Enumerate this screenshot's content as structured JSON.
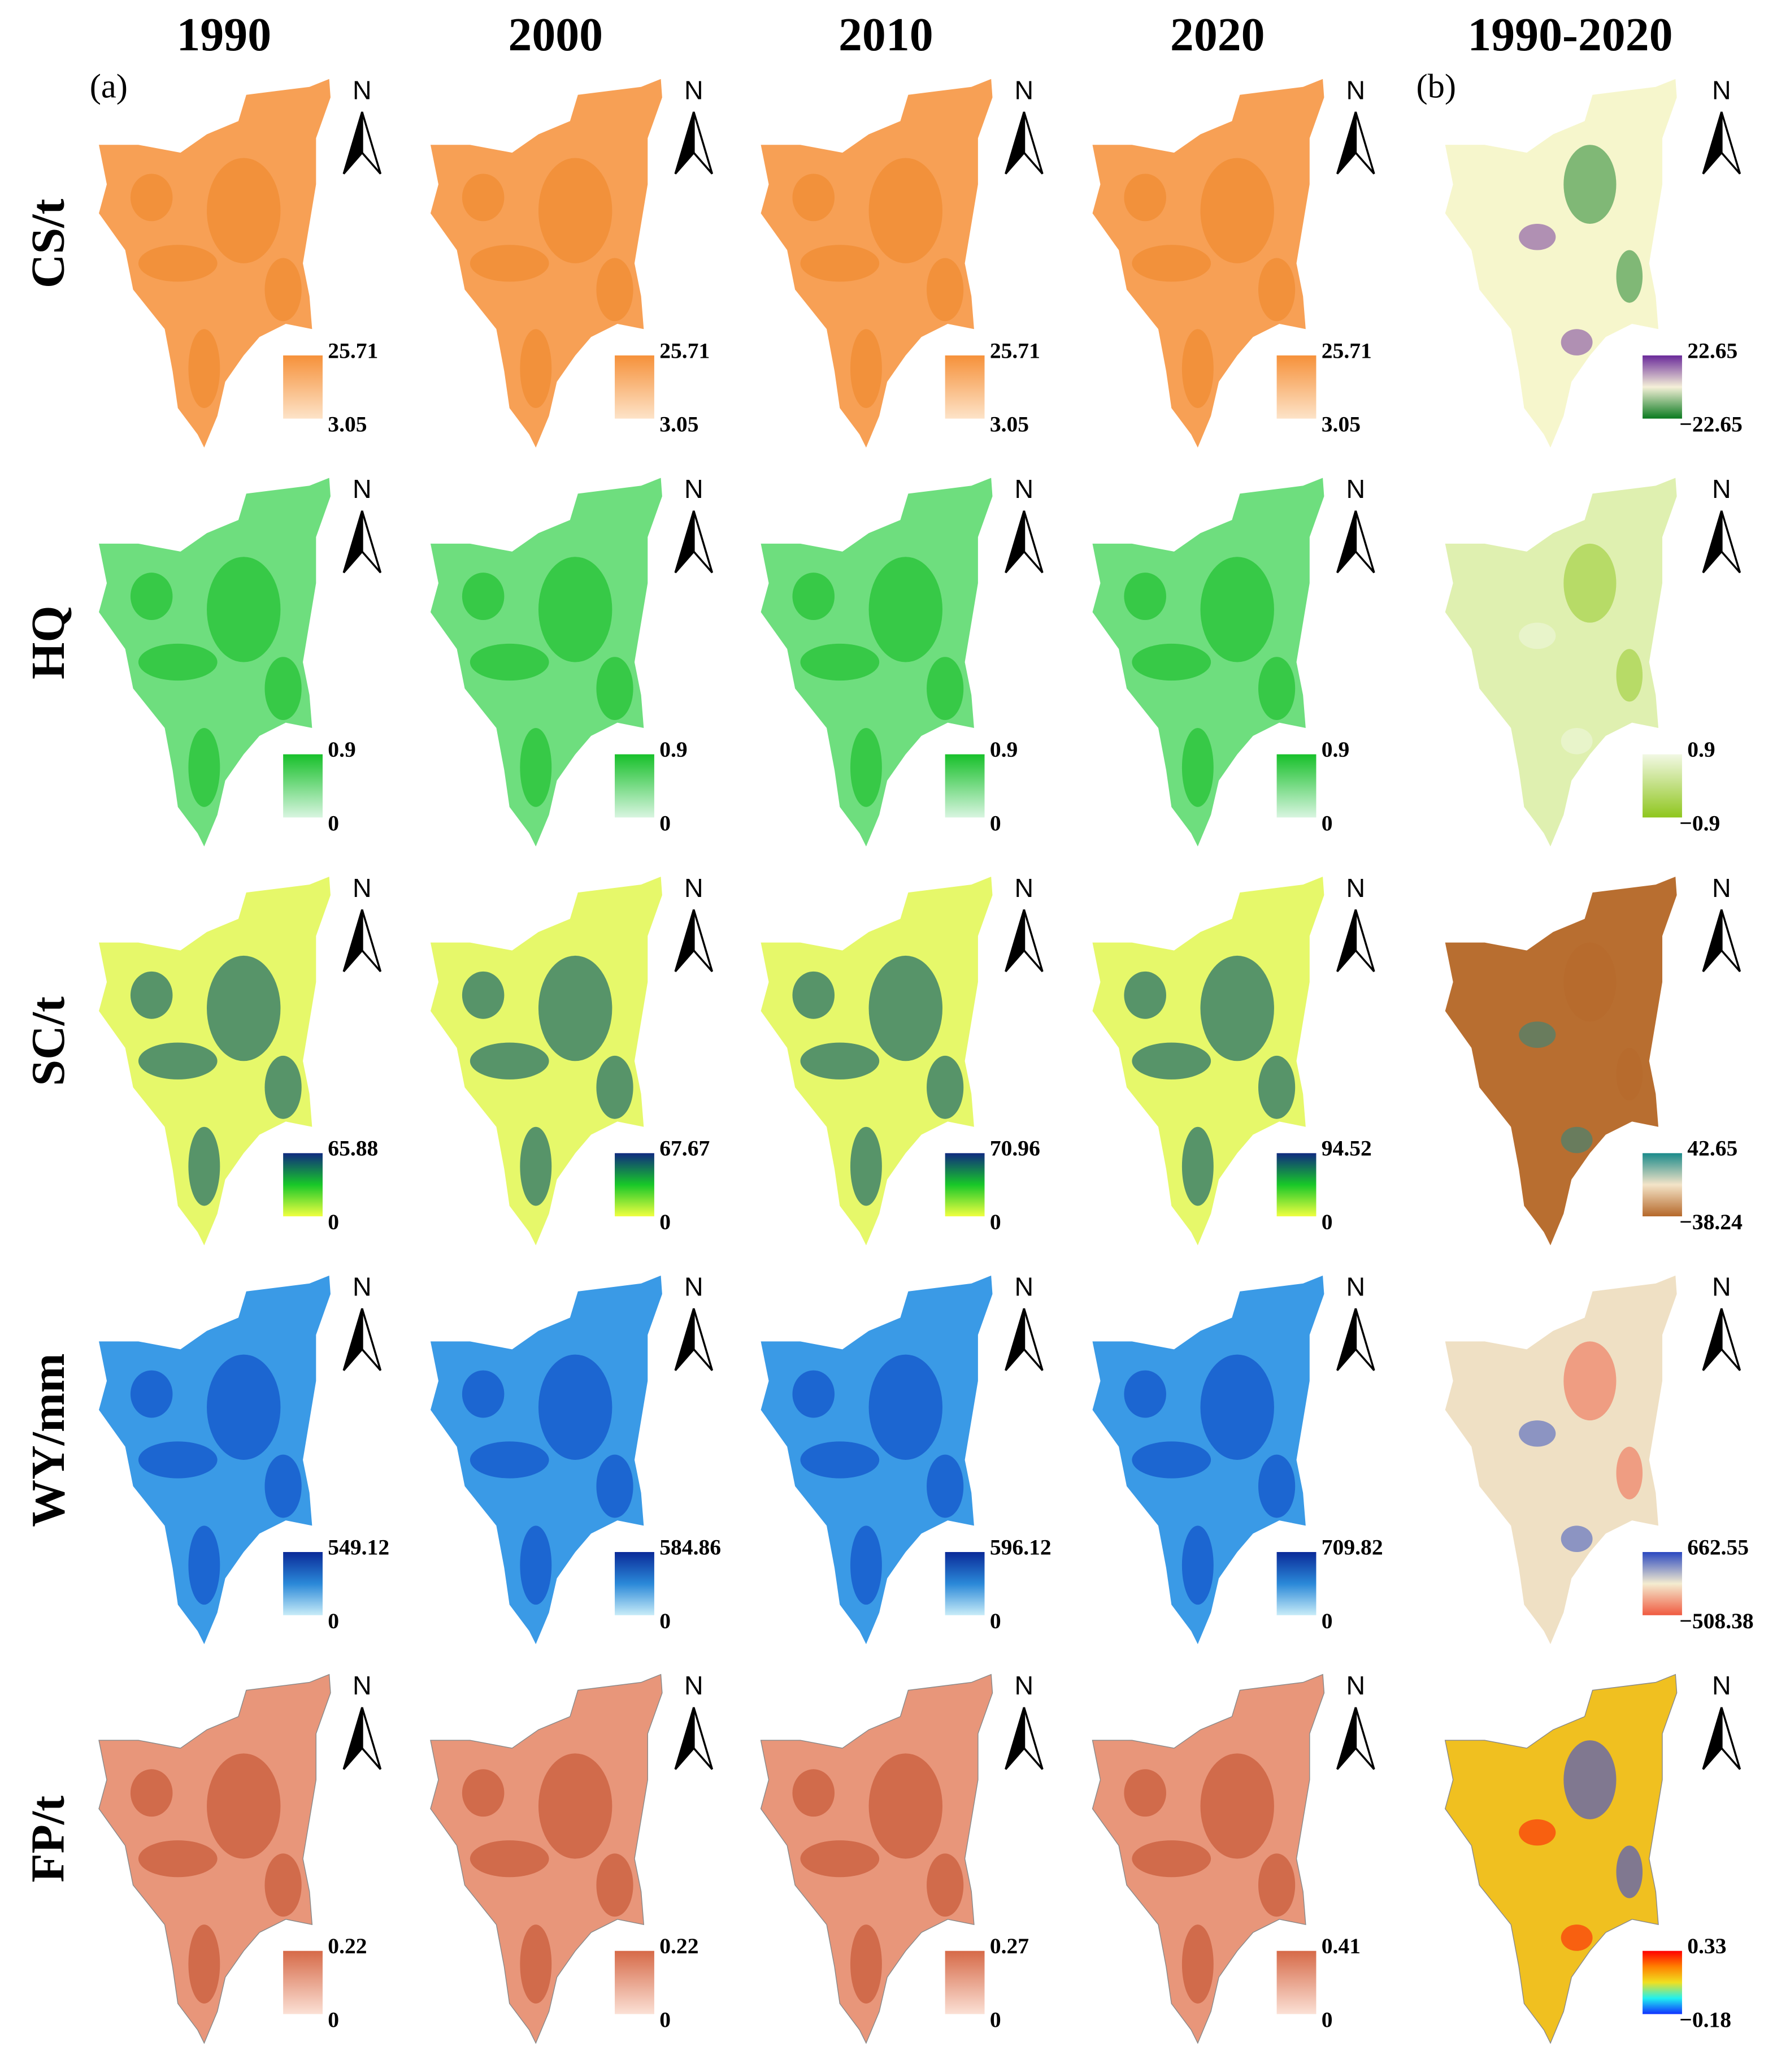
{
  "columns": [
    "1990",
    "2000",
    "2010",
    "2020",
    "1990-2020"
  ],
  "panel_labels": [
    "(a)",
    "(b)"
  ],
  "north": "N",
  "rows": [
    {
      "label": "CS/t",
      "legends": [
        {
          "max": "25.71",
          "min": "3.05"
        },
        {
          "max": "25.71",
          "min": "3.05"
        },
        {
          "max": "25.71",
          "min": "3.05"
        },
        {
          "max": "25.71",
          "min": "3.05"
        },
        {
          "max": "22.65",
          "min": "−22.65"
        }
      ]
    },
    {
      "label": "HQ",
      "legends": [
        {
          "max": "0.9",
          "min": "0"
        },
        {
          "max": "0.9",
          "min": "0"
        },
        {
          "max": "0.9",
          "min": "0"
        },
        {
          "max": "0.9",
          "min": "0"
        },
        {
          "max": "0.9",
          "min": "−0.9"
        }
      ]
    },
    {
      "label": "SC/t",
      "legends": [
        {
          "max": "65.88",
          "min": "0"
        },
        {
          "max": "67.67",
          "min": "0"
        },
        {
          "max": "70.96",
          "min": "0"
        },
        {
          "max": "94.52",
          "min": "0"
        },
        {
          "max": "42.65",
          "min": "−38.24"
        }
      ]
    },
    {
      "label": "WY/mm",
      "legends": [
        {
          "max": "549.12",
          "min": "0"
        },
        {
          "max": "584.86",
          "min": "0"
        },
        {
          "max": "596.12",
          "min": "0"
        },
        {
          "max": "709.82",
          "min": "0"
        },
        {
          "max": "662.55",
          "min": "−508.38"
        }
      ]
    },
    {
      "label": "FP/t",
      "legends": [
        {
          "max": "0.22",
          "min": "0"
        },
        {
          "max": "0.22",
          "min": "0"
        },
        {
          "max": "0.27",
          "min": "0"
        },
        {
          "max": "0.41",
          "min": "0"
        },
        {
          "max": "0.33",
          "min": "−0.18"
        }
      ]
    }
  ]
}
